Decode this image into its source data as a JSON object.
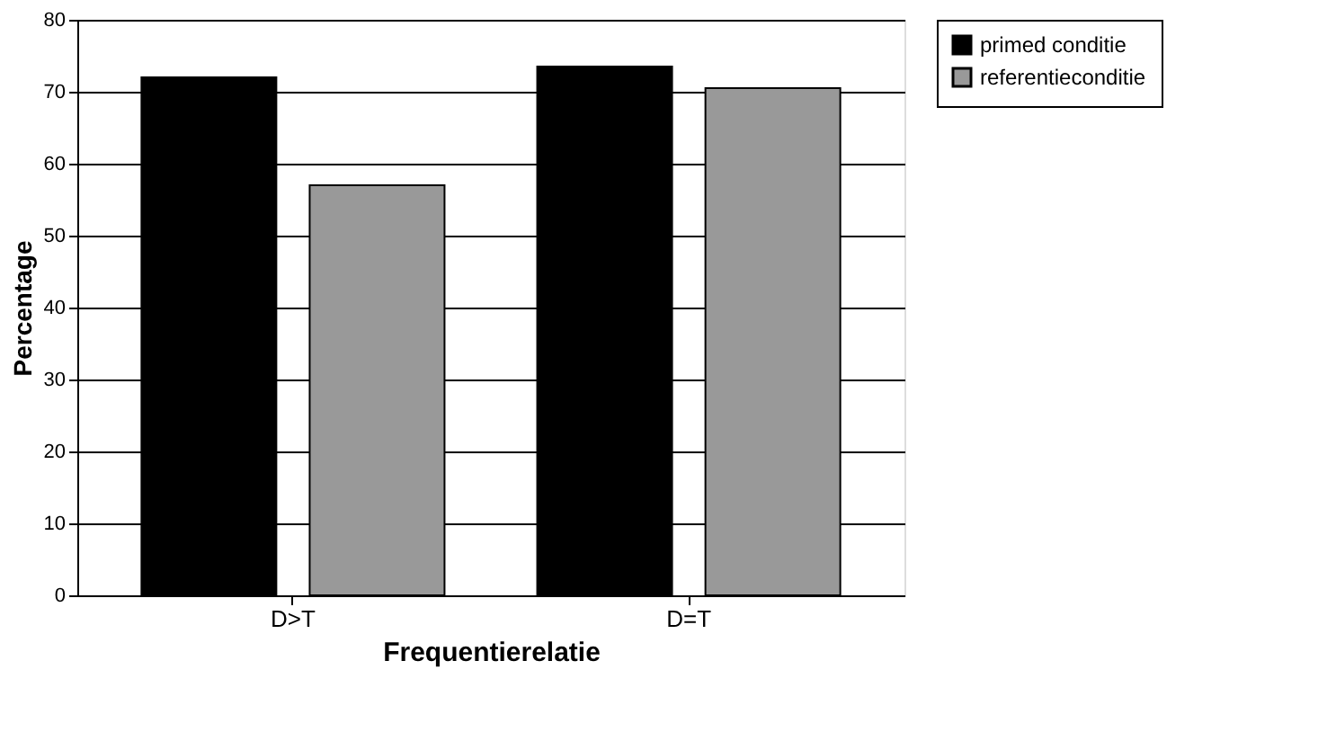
{
  "chart_data": {
    "type": "bar",
    "xlabel": "Frequentierelatie",
    "ylabel": "Percentage",
    "categories": [
      "D>T",
      "D=T"
    ],
    "series": [
      {
        "name": "primed conditie",
        "color": "#000000",
        "values": [
          72,
          73.5
        ]
      },
      {
        "name": "referentieconditie",
        "color": "#999999",
        "values": [
          57,
          70.5
        ]
      }
    ],
    "ylim": [
      0,
      80
    ],
    "yticks": [
      0,
      10,
      20,
      30,
      40,
      50,
      60,
      70,
      80
    ],
    "grid": "y",
    "legend": "top right"
  }
}
